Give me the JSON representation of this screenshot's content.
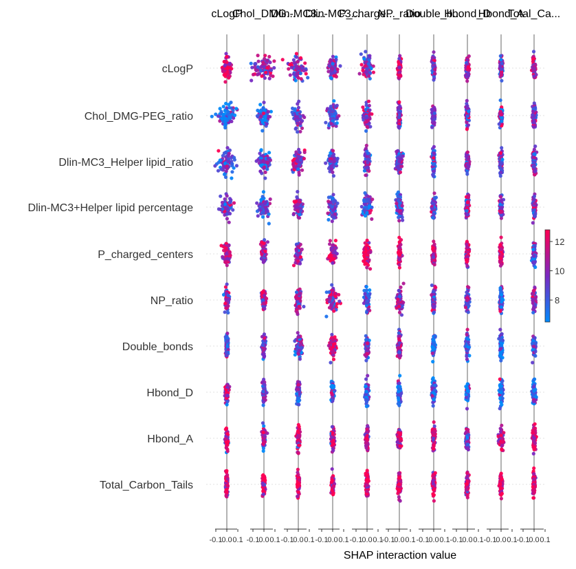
{
  "chart_data": {
    "type": "scatter",
    "subtype": "shap-interaction-beeswarm-grid",
    "xlabel": "SHAP interaction value",
    "features": [
      "cLogP",
      "Chol_DMG-PEG_ratio",
      "Dlin-MC3_Helper lipid_ratio",
      "Dlin-MC3+Helper lipid percentage",
      "P_charged_centers",
      "NP_ratio",
      "Double_bonds",
      "Hbond_D",
      "Hbond_A",
      "Total_Carbon_Tails"
    ],
    "column_titles": [
      "cLogP",
      "Chol_DMG...",
      "Dlin-MC3...",
      "Dlin-MC3...",
      "P_charge...",
      "NP_ratio",
      "Double_b...",
      "Hbond_D",
      "Hbond_A",
      "Total_Ca..."
    ],
    "x_ticks": [
      "-0.1",
      "0.0",
      "0.1"
    ],
    "x_range": [
      -0.15,
      0.15
    ],
    "colorbar": {
      "min": 6.5,
      "max": 12.8,
      "ticks": [
        8,
        10,
        12
      ],
      "tick_labels": [
        "8",
        "10",
        "12"
      ],
      "low_color": "#008afb",
      "mid_color": "#7a29c2",
      "high_color": "#ff0052"
    },
    "color_bias": [
      [
        0.85,
        0.6,
        0.55,
        0.5,
        0.55,
        0.8,
        0.5,
        0.6,
        0.5,
        0.55
      ],
      [
        0.2,
        0.2,
        0.4,
        0.3,
        0.45,
        0.55,
        0.5,
        0.55,
        0.5,
        0.5
      ],
      [
        0.3,
        0.3,
        0.6,
        0.4,
        0.45,
        0.4,
        0.35,
        0.45,
        0.4,
        0.45
      ],
      [
        0.35,
        0.35,
        0.5,
        0.4,
        0.35,
        0.3,
        0.5,
        0.55,
        0.45,
        0.6
      ],
      [
        0.75,
        0.6,
        0.7,
        0.75,
        0.9,
        0.8,
        0.85,
        0.8,
        0.85,
        0.35
      ],
      [
        0.6,
        0.7,
        0.6,
        0.6,
        0.35,
        0.6,
        0.5,
        0.4,
        0.35,
        0.55
      ],
      [
        0.4,
        0.4,
        0.5,
        0.7,
        0.4,
        0.7,
        0.2,
        0.25,
        0.2,
        0.3
      ],
      [
        0.7,
        0.35,
        0.4,
        0.3,
        0.2,
        0.2,
        0.3,
        0.15,
        0.15,
        0.2
      ],
      [
        0.7,
        0.6,
        0.75,
        0.7,
        0.7,
        0.8,
        0.85,
        0.5,
        0.75,
        0.8
      ],
      [
        0.9,
        0.9,
        0.9,
        0.9,
        0.85,
        0.9,
        0.85,
        0.8,
        0.9,
        0.9
      ]
    ],
    "spread": [
      [
        0.035,
        0.09,
        0.07,
        0.035,
        0.04,
        0.012,
        0.012,
        0.012,
        0.012,
        0.012
      ],
      [
        0.06,
        0.04,
        0.035,
        0.035,
        0.025,
        0.012,
        0.012,
        0.012,
        0.012,
        0.012
      ],
      [
        0.06,
        0.05,
        0.04,
        0.035,
        0.02,
        0.025,
        0.012,
        0.012,
        0.012,
        0.012
      ],
      [
        0.04,
        0.04,
        0.03,
        0.03,
        0.035,
        0.025,
        0.015,
        0.012,
        0.012,
        0.012
      ],
      [
        0.025,
        0.02,
        0.02,
        0.025,
        0.03,
        0.012,
        0.012,
        0.012,
        0.012,
        0.012
      ],
      [
        0.015,
        0.015,
        0.025,
        0.04,
        0.02,
        0.025,
        0.012,
        0.012,
        0.012,
        0.012
      ],
      [
        0.012,
        0.012,
        0.03,
        0.025,
        0.012,
        0.012,
        0.012,
        0.012,
        0.012,
        0.012
      ],
      [
        0.012,
        0.012,
        0.012,
        0.012,
        0.012,
        0.012,
        0.012,
        0.012,
        0.012,
        0.012
      ],
      [
        0.012,
        0.012,
        0.012,
        0.012,
        0.012,
        0.012,
        0.012,
        0.012,
        0.02,
        0.012
      ],
      [
        0.01,
        0.01,
        0.01,
        0.01,
        0.01,
        0.01,
        0.01,
        0.01,
        0.01,
        0.01
      ]
    ]
  }
}
